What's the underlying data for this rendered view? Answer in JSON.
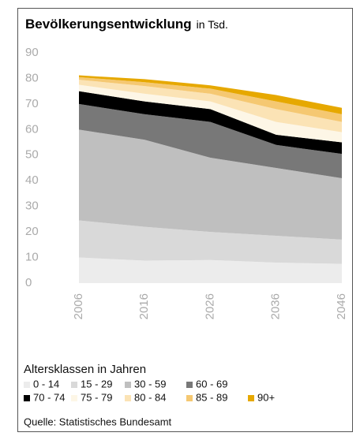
{
  "chart_data": {
    "type": "stacked_area",
    "title": "Bevölkerungsentwicklung",
    "subtitle": "in Tsd.",
    "x": [
      2006,
      2016,
      2026,
      2036,
      2046
    ],
    "xlim": [
      2006,
      2046
    ],
    "xticks": [
      2006,
      2016,
      2026,
      2036,
      2046
    ],
    "ylim": [
      0,
      90
    ],
    "yticks": [
      0,
      10,
      20,
      30,
      40,
      50,
      60,
      70,
      80,
      90
    ],
    "legend_title": "Altersklassen in Jahren",
    "source": "Quelle: Statistisches Bundesamt",
    "series": [
      {
        "name": "0 - 14",
        "color": "#ececec",
        "values": [
          10,
          8.8,
          9,
          8,
          7.5
        ]
      },
      {
        "name": "15 - 29",
        "color": "#d9d9d9",
        "values": [
          14.5,
          13.2,
          11,
          10.5,
          9.5
        ]
      },
      {
        "name": "30 - 59",
        "color": "#bfbfbf",
        "values": [
          35.5,
          34,
          29,
          26.5,
          24
        ]
      },
      {
        "name": "60 - 69",
        "color": "#787878",
        "values": [
          10,
          10,
          14,
          9,
          9.5
        ]
      },
      {
        "name": "70 - 74",
        "color": "#000000",
        "values": [
          5,
          5,
          5,
          4,
          4.5
        ]
      },
      {
        "name": "75 - 79",
        "color": "#fdf6e6",
        "values": [
          2.5,
          3,
          3,
          5,
          4
        ]
      },
      {
        "name": "80 - 84",
        "color": "#fbe3b5",
        "values": [
          2,
          3,
          3,
          5,
          4
        ]
      },
      {
        "name": "85 - 89",
        "color": "#f5c872",
        "values": [
          1,
          1.5,
          2,
          3,
          3
        ]
      },
      {
        "name": "90+",
        "color": "#e6a800",
        "values": [
          0.7,
          1.2,
          1.3,
          2.5,
          2.5
        ]
      }
    ]
  }
}
